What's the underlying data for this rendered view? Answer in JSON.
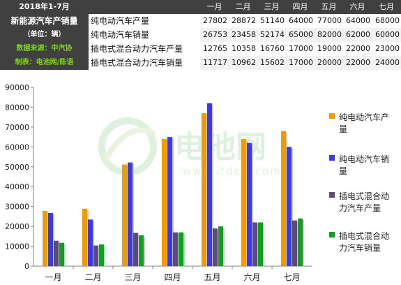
{
  "table": {
    "side_labels": [
      "2018年1-7月",
      "新能源汽车产销量",
      "（单位：辆）",
      "数据来源：中汽协",
      "制表：电池网/陈语"
    ],
    "months": [
      "一月",
      "二月",
      "三月",
      "四月",
      "五月",
      "六月",
      "七月"
    ],
    "rows": [
      {
        "label": "纯电动汽车产量",
        "values": [
          27802,
          28872,
          51140,
          64000,
          77000,
          64000,
          68000
        ]
      },
      {
        "label": "纯电动汽车销量",
        "values": [
          26753,
          23458,
          52174,
          65000,
          82000,
          62000,
          60000
        ]
      },
      {
        "label": "插电式混合动力汽车产量",
        "values": [
          12765,
          10358,
          16760,
          17000,
          19000,
          22000,
          23000
        ]
      },
      {
        "label": "插电式混合动力汽车销量",
        "values": [
          11717,
          10962,
          15602,
          17000,
          20000,
          22000,
          24000
        ]
      }
    ]
  },
  "watermark": {
    "brand": "电池网",
    "url": "www.itdcw.com"
  },
  "chart_data": {
    "type": "bar",
    "categories": [
      "一月",
      "二月",
      "三月",
      "四月",
      "五月",
      "六月",
      "七月"
    ],
    "ylim": [
      0,
      90000
    ],
    "yticks": [
      0,
      10000,
      20000,
      30000,
      40000,
      50000,
      60000,
      70000,
      80000,
      90000
    ],
    "grid": false,
    "legend_position": "right",
    "series": [
      {
        "name": "纯电动汽车产量",
        "color": "#f29b00",
        "values": [
          27802,
          28872,
          51140,
          64000,
          77000,
          64000,
          68000
        ]
      },
      {
        "name": "纯电动汽车销量",
        "color": "#3a3ae8",
        "values": [
          26753,
          23458,
          52174,
          65000,
          82000,
          62000,
          60000
        ]
      },
      {
        "name": "插电式混合动力汽车产量",
        "color": "#5c4a7a",
        "values": [
          12765,
          10358,
          16760,
          17000,
          19000,
          22000,
          23000
        ]
      },
      {
        "name": "插电式混合动力汽车销量",
        "color": "#0fa01e",
        "values": [
          11717,
          10962,
          15602,
          17000,
          20000,
          22000,
          24000
        ]
      }
    ],
    "legend_lines": [
      [
        "纯电动汽车产",
        "量"
      ],
      [
        "纯电动汽车销",
        "量"
      ],
      [
        "插电式混合动",
        "力汽车产量"
      ],
      [
        "插电式混合动",
        "力汽车销量"
      ]
    ]
  }
}
